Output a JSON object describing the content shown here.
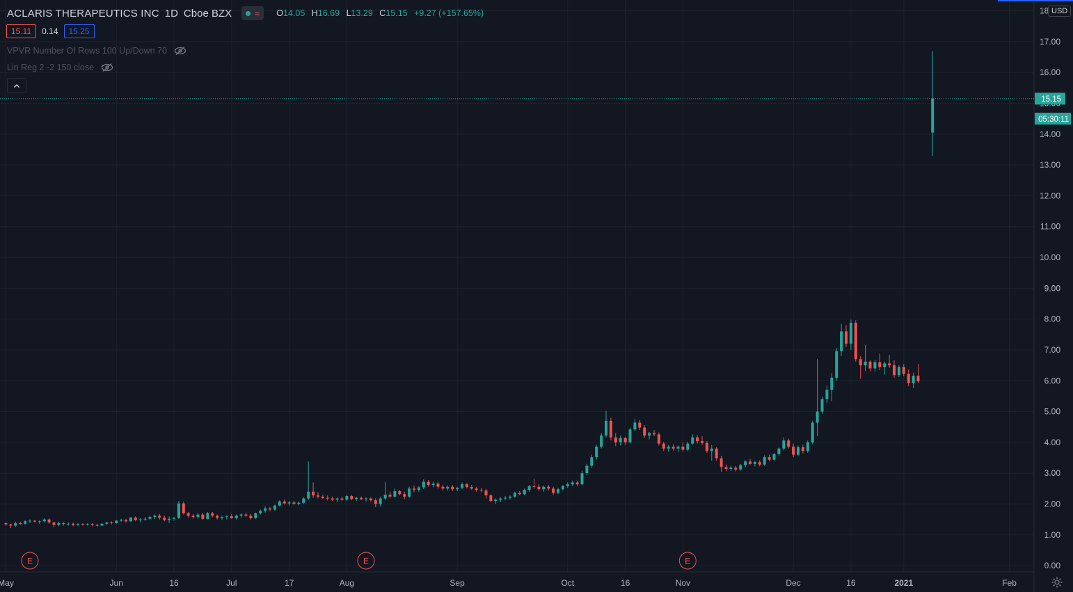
{
  "header": {
    "symbol": "ACLARIS THERAPEUTICS INC",
    "interval": "1D",
    "exchange": "Cboe BZX",
    "ohlc": {
      "o_label": "O",
      "o": "14.05",
      "h_label": "H",
      "h": "16.69",
      "l_label": "L",
      "l": "13.29",
      "c_label": "C",
      "c": "15.15",
      "change": "+9.27 (+157.65%)"
    },
    "bid": "15.11",
    "spread": "0.14",
    "ask": "15.25"
  },
  "indicators": [
    {
      "label": "VPVR Number Of Rows 100 Up/Down 70",
      "icon": "eye-hidden-icon"
    },
    {
      "label": "Lin Reg 2 -2 150 close",
      "icon": "eye-hidden-icon"
    }
  ],
  "price_axis": {
    "currency": "USD",
    "last_price": "15.15",
    "countdown": "05:30:11"
  },
  "colors": {
    "background": "#131722",
    "up": "#26a69a",
    "down": "#ef5350",
    "grid": "#1e222d",
    "axis_text": "#b2b5be"
  },
  "earnings_marker": "E",
  "chart_data": {
    "type": "candlestick",
    "title": "",
    "ylim": [
      -0.2,
      18.35
    ],
    "y_ticks": [
      "0.00",
      "1.00",
      "2.00",
      "3.00",
      "4.00",
      "5.00",
      "6.00",
      "7.00",
      "8.00",
      "9.00",
      "10.00",
      "11.00",
      "12.00",
      "13.00",
      "14.00",
      "15.00",
      "16.00",
      "17.00",
      "18.00"
    ],
    "x_tick_labels": [
      "May",
      "Jun",
      "16",
      "Jul",
      "17",
      "Aug",
      "Sep",
      "Oct",
      "16",
      "Nov",
      "Dec",
      "16",
      "2021",
      "Feb"
    ],
    "x_tick_bars": [
      0,
      23,
      35,
      47,
      59,
      71,
      94,
      117,
      129,
      141,
      164,
      176,
      187,
      209
    ],
    "total_bars": 216,
    "earnings_bars": [
      5,
      75,
      142
    ],
    "candles": [
      [
        1.38,
        1.4,
        1.3,
        1.34
      ],
      [
        1.34,
        1.36,
        1.22,
        1.3
      ],
      [
        1.3,
        1.42,
        1.26,
        1.38
      ],
      [
        1.38,
        1.42,
        1.33,
        1.36
      ],
      [
        1.36,
        1.48,
        1.32,
        1.44
      ],
      [
        1.44,
        1.5,
        1.38,
        1.46
      ],
      [
        1.46,
        1.48,
        1.4,
        1.43
      ],
      [
        1.43,
        1.47,
        1.36,
        1.44
      ],
      [
        1.44,
        1.54,
        1.41,
        1.5
      ],
      [
        1.5,
        1.53,
        1.36,
        1.4
      ],
      [
        1.4,
        1.42,
        1.25,
        1.32
      ],
      [
        1.32,
        1.42,
        1.28,
        1.38
      ],
      [
        1.38,
        1.41,
        1.3,
        1.35
      ],
      [
        1.35,
        1.4,
        1.3,
        1.36
      ],
      [
        1.36,
        1.4,
        1.28,
        1.32
      ],
      [
        1.32,
        1.38,
        1.28,
        1.35
      ],
      [
        1.35,
        1.38,
        1.3,
        1.33
      ],
      [
        1.33,
        1.38,
        1.3,
        1.35
      ],
      [
        1.35,
        1.38,
        1.28,
        1.32
      ],
      [
        1.32,
        1.36,
        1.26,
        1.3
      ],
      [
        1.3,
        1.38,
        1.28,
        1.36
      ],
      [
        1.36,
        1.42,
        1.33,
        1.4
      ],
      [
        1.4,
        1.44,
        1.34,
        1.38
      ],
      [
        1.38,
        1.48,
        1.36,
        1.46
      ],
      [
        1.46,
        1.52,
        1.42,
        1.48
      ],
      [
        1.48,
        1.52,
        1.4,
        1.44
      ],
      [
        1.44,
        1.58,
        1.42,
        1.56
      ],
      [
        1.56,
        1.6,
        1.44,
        1.48
      ],
      [
        1.48,
        1.54,
        1.4,
        1.5
      ],
      [
        1.5,
        1.58,
        1.46,
        1.52
      ],
      [
        1.52,
        1.62,
        1.48,
        1.58
      ],
      [
        1.58,
        1.66,
        1.52,
        1.62
      ],
      [
        1.62,
        1.68,
        1.5,
        1.56
      ],
      [
        1.56,
        1.62,
        1.44,
        1.48
      ],
      [
        1.48,
        1.6,
        1.38,
        1.52
      ],
      [
        1.52,
        1.58,
        1.46,
        1.55
      ],
      [
        1.55,
        2.1,
        1.52,
        2.02
      ],
      [
        2.02,
        2.08,
        1.66,
        1.7
      ],
      [
        1.7,
        1.74,
        1.56,
        1.62
      ],
      [
        1.62,
        1.68,
        1.52,
        1.58
      ],
      [
        1.58,
        1.7,
        1.52,
        1.66
      ],
      [
        1.66,
        1.72,
        1.48,
        1.52
      ],
      [
        1.52,
        1.74,
        1.5,
        1.7
      ],
      [
        1.7,
        1.74,
        1.56,
        1.62
      ],
      [
        1.62,
        1.66,
        1.5,
        1.55
      ],
      [
        1.55,
        1.62,
        1.48,
        1.58
      ],
      [
        1.58,
        1.64,
        1.5,
        1.6
      ],
      [
        1.6,
        1.68,
        1.52,
        1.54
      ],
      [
        1.54,
        1.66,
        1.5,
        1.62
      ],
      [
        1.62,
        1.7,
        1.56,
        1.66
      ],
      [
        1.66,
        1.72,
        1.58,
        1.62
      ],
      [
        1.62,
        1.68,
        1.5,
        1.54
      ],
      [
        1.54,
        1.72,
        1.52,
        1.7
      ],
      [
        1.7,
        1.82,
        1.66,
        1.78
      ],
      [
        1.78,
        1.92,
        1.72,
        1.86
      ],
      [
        1.86,
        1.9,
        1.76,
        1.82
      ],
      [
        1.82,
        1.98,
        1.78,
        1.95
      ],
      [
        1.95,
        2.12,
        1.92,
        2.08
      ],
      [
        2.08,
        2.14,
        1.98,
        2.02
      ],
      [
        2.02,
        2.1,
        1.96,
        2.05
      ],
      [
        2.05,
        2.1,
        1.98,
        2.0
      ],
      [
        2.0,
        2.08,
        1.96,
        2.04
      ],
      [
        2.04,
        2.22,
        2.0,
        2.18
      ],
      [
        2.18,
        3.38,
        2.14,
        2.4
      ],
      [
        2.4,
        2.7,
        2.2,
        2.28
      ],
      [
        2.28,
        2.38,
        2.18,
        2.24
      ],
      [
        2.24,
        2.3,
        2.16,
        2.2
      ],
      [
        2.2,
        2.28,
        2.12,
        2.18
      ],
      [
        2.18,
        2.24,
        2.1,
        2.14
      ],
      [
        2.14,
        2.22,
        2.06,
        2.18
      ],
      [
        2.18,
        2.24,
        2.1,
        2.14
      ],
      [
        2.14,
        2.3,
        2.1,
        2.26
      ],
      [
        2.26,
        2.3,
        2.12,
        2.16
      ],
      [
        2.16,
        2.24,
        2.1,
        2.2
      ],
      [
        2.2,
        2.24,
        2.12,
        2.16
      ],
      [
        2.16,
        2.22,
        2.08,
        2.18
      ],
      [
        2.18,
        2.22,
        2.08,
        2.12
      ],
      [
        2.12,
        2.18,
        1.9,
        2.0
      ],
      [
        2.0,
        2.24,
        1.92,
        2.18
      ],
      [
        2.18,
        2.72,
        2.14,
        2.3
      ],
      [
        2.3,
        2.4,
        2.18,
        2.24
      ],
      [
        2.24,
        2.5,
        2.2,
        2.42
      ],
      [
        2.42,
        2.46,
        2.28,
        2.32
      ],
      [
        2.32,
        2.4,
        2.16,
        2.24
      ],
      [
        2.24,
        2.56,
        2.2,
        2.5
      ],
      [
        2.5,
        2.6,
        2.38,
        2.46
      ],
      [
        2.46,
        2.58,
        2.4,
        2.54
      ],
      [
        2.54,
        2.8,
        2.48,
        2.72
      ],
      [
        2.72,
        2.78,
        2.56,
        2.62
      ],
      [
        2.62,
        2.72,
        2.54,
        2.66
      ],
      [
        2.66,
        2.72,
        2.5,
        2.56
      ],
      [
        2.56,
        2.62,
        2.44,
        2.5
      ],
      [
        2.5,
        2.6,
        2.44,
        2.56
      ],
      [
        2.56,
        2.62,
        2.42,
        2.48
      ],
      [
        2.48,
        2.56,
        2.42,
        2.52
      ],
      [
        2.52,
        2.7,
        2.48,
        2.64
      ],
      [
        2.64,
        2.68,
        2.5,
        2.55
      ],
      [
        2.55,
        2.62,
        2.46,
        2.5
      ],
      [
        2.5,
        2.56,
        2.4,
        2.46
      ],
      [
        2.46,
        2.52,
        2.38,
        2.44
      ],
      [
        2.44,
        2.5,
        2.18,
        2.28
      ],
      [
        2.28,
        2.32,
        2.06,
        2.1
      ],
      [
        2.1,
        2.18,
        2.0,
        2.14
      ],
      [
        2.14,
        2.22,
        2.06,
        2.18
      ],
      [
        2.18,
        2.26,
        2.12,
        2.2
      ],
      [
        2.2,
        2.28,
        2.14,
        2.24
      ],
      [
        2.24,
        2.4,
        2.2,
        2.36
      ],
      [
        2.36,
        2.42,
        2.28,
        2.32
      ],
      [
        2.32,
        2.5,
        2.28,
        2.46
      ],
      [
        2.46,
        2.62,
        2.4,
        2.58
      ],
      [
        2.58,
        2.82,
        2.5,
        2.56
      ],
      [
        2.56,
        2.64,
        2.42,
        2.48
      ],
      [
        2.48,
        2.6,
        2.4,
        2.56
      ],
      [
        2.56,
        2.62,
        2.44,
        2.5
      ],
      [
        2.5,
        2.56,
        2.3,
        2.36
      ],
      [
        2.36,
        2.52,
        2.32,
        2.48
      ],
      [
        2.48,
        2.62,
        2.44,
        2.58
      ],
      [
        2.58,
        2.7,
        2.52,
        2.64
      ],
      [
        2.64,
        2.76,
        2.58,
        2.7
      ],
      [
        2.7,
        2.76,
        2.58,
        2.64
      ],
      [
        2.64,
        3.08,
        2.6,
        3.0
      ],
      [
        3.0,
        3.3,
        2.94,
        3.24
      ],
      [
        3.24,
        3.6,
        3.18,
        3.52
      ],
      [
        3.52,
        3.92,
        3.44,
        3.86
      ],
      [
        3.86,
        4.3,
        3.8,
        4.22
      ],
      [
        4.22,
        5.02,
        4.16,
        4.7
      ],
      [
        4.7,
        4.8,
        4.06,
        4.16
      ],
      [
        4.16,
        4.3,
        3.88,
        4.0
      ],
      [
        4.0,
        4.22,
        3.9,
        4.14
      ],
      [
        4.14,
        4.18,
        3.92,
        4.0
      ],
      [
        4.0,
        4.48,
        3.96,
        4.42
      ],
      [
        4.42,
        4.76,
        4.36,
        4.64
      ],
      [
        4.64,
        4.72,
        4.4,
        4.48
      ],
      [
        4.48,
        4.56,
        4.14,
        4.22
      ],
      [
        4.22,
        4.34,
        4.1,
        4.3
      ],
      [
        4.3,
        4.4,
        4.2,
        4.26
      ],
      [
        4.26,
        4.32,
        3.9,
        3.96
      ],
      [
        3.96,
        4.02,
        3.72,
        3.8
      ],
      [
        3.8,
        3.92,
        3.7,
        3.86
      ],
      [
        3.86,
        3.94,
        3.72,
        3.8
      ],
      [
        3.8,
        3.9,
        3.68,
        3.86
      ],
      [
        3.86,
        4.0,
        3.7,
        3.76
      ],
      [
        3.76,
        4.02,
        3.72,
        3.96
      ],
      [
        3.96,
        4.26,
        3.92,
        4.16
      ],
      [
        4.16,
        4.24,
        3.96,
        4.04
      ],
      [
        4.04,
        4.2,
        3.92,
        3.98
      ],
      [
        3.98,
        4.04,
        3.66,
        3.72
      ],
      [
        3.72,
        3.92,
        3.4,
        3.8
      ],
      [
        3.8,
        3.84,
        3.4,
        3.48
      ],
      [
        3.48,
        3.56,
        3.04,
        3.2
      ],
      [
        3.2,
        3.28,
        3.06,
        3.14
      ],
      [
        3.14,
        3.24,
        3.08,
        3.18
      ],
      [
        3.18,
        3.24,
        3.06,
        3.12
      ],
      [
        3.12,
        3.3,
        3.08,
        3.26
      ],
      [
        3.26,
        3.42,
        3.2,
        3.38
      ],
      [
        3.38,
        3.46,
        3.26,
        3.3
      ],
      [
        3.3,
        3.4,
        3.22,
        3.36
      ],
      [
        3.36,
        3.42,
        3.22,
        3.28
      ],
      [
        3.28,
        3.58,
        3.24,
        3.52
      ],
      [
        3.52,
        3.6,
        3.38,
        3.44
      ],
      [
        3.44,
        3.66,
        3.4,
        3.62
      ],
      [
        3.62,
        3.84,
        3.56,
        3.8
      ],
      [
        3.8,
        4.16,
        3.74,
        4.06
      ],
      [
        4.06,
        4.12,
        3.8,
        3.86
      ],
      [
        3.86,
        3.96,
        3.52,
        3.6
      ],
      [
        3.6,
        3.9,
        3.56,
        3.84
      ],
      [
        3.84,
        3.92,
        3.64,
        3.72
      ],
      [
        3.72,
        4.06,
        3.66,
        4.0
      ],
      [
        4.0,
        4.7,
        3.94,
        4.64
      ],
      [
        4.64,
        6.7,
        4.2,
        5.0
      ],
      [
        5.0,
        5.48,
        4.92,
        5.4
      ],
      [
        5.4,
        5.84,
        5.28,
        5.7
      ],
      [
        5.7,
        6.24,
        5.34,
        6.1
      ],
      [
        6.1,
        7.06,
        6.0,
        6.96
      ],
      [
        6.96,
        7.84,
        6.8,
        7.6
      ],
      [
        7.6,
        7.8,
        7.1,
        7.2
      ],
      [
        7.2,
        7.98,
        7.0,
        7.88
      ],
      [
        7.88,
        7.96,
        6.62,
        6.7
      ],
      [
        6.7,
        6.8,
        6.06,
        6.5
      ],
      [
        6.5,
        7.16,
        6.32,
        6.62
      ],
      [
        6.62,
        6.66,
        6.3,
        6.4
      ],
      [
        6.4,
        6.68,
        6.3,
        6.6
      ],
      [
        6.6,
        6.88,
        6.34,
        6.44
      ],
      [
        6.44,
        6.62,
        6.2,
        6.56
      ],
      [
        6.56,
        6.84,
        6.42,
        6.5
      ],
      [
        6.5,
        6.66,
        6.1,
        6.18
      ],
      [
        6.18,
        6.5,
        6.12,
        6.44
      ],
      [
        6.44,
        6.54,
        6.14,
        6.22
      ],
      [
        6.22,
        6.36,
        5.82,
        5.92
      ],
      [
        5.92,
        6.26,
        5.76,
        6.16
      ],
      [
        6.16,
        6.54,
        5.92,
        5.98
      ],
      [
        null,
        null,
        null,
        null
      ],
      [
        null,
        null,
        null,
        null
      ],
      [
        14.05,
        16.69,
        13.29,
        15.15
      ]
    ]
  }
}
